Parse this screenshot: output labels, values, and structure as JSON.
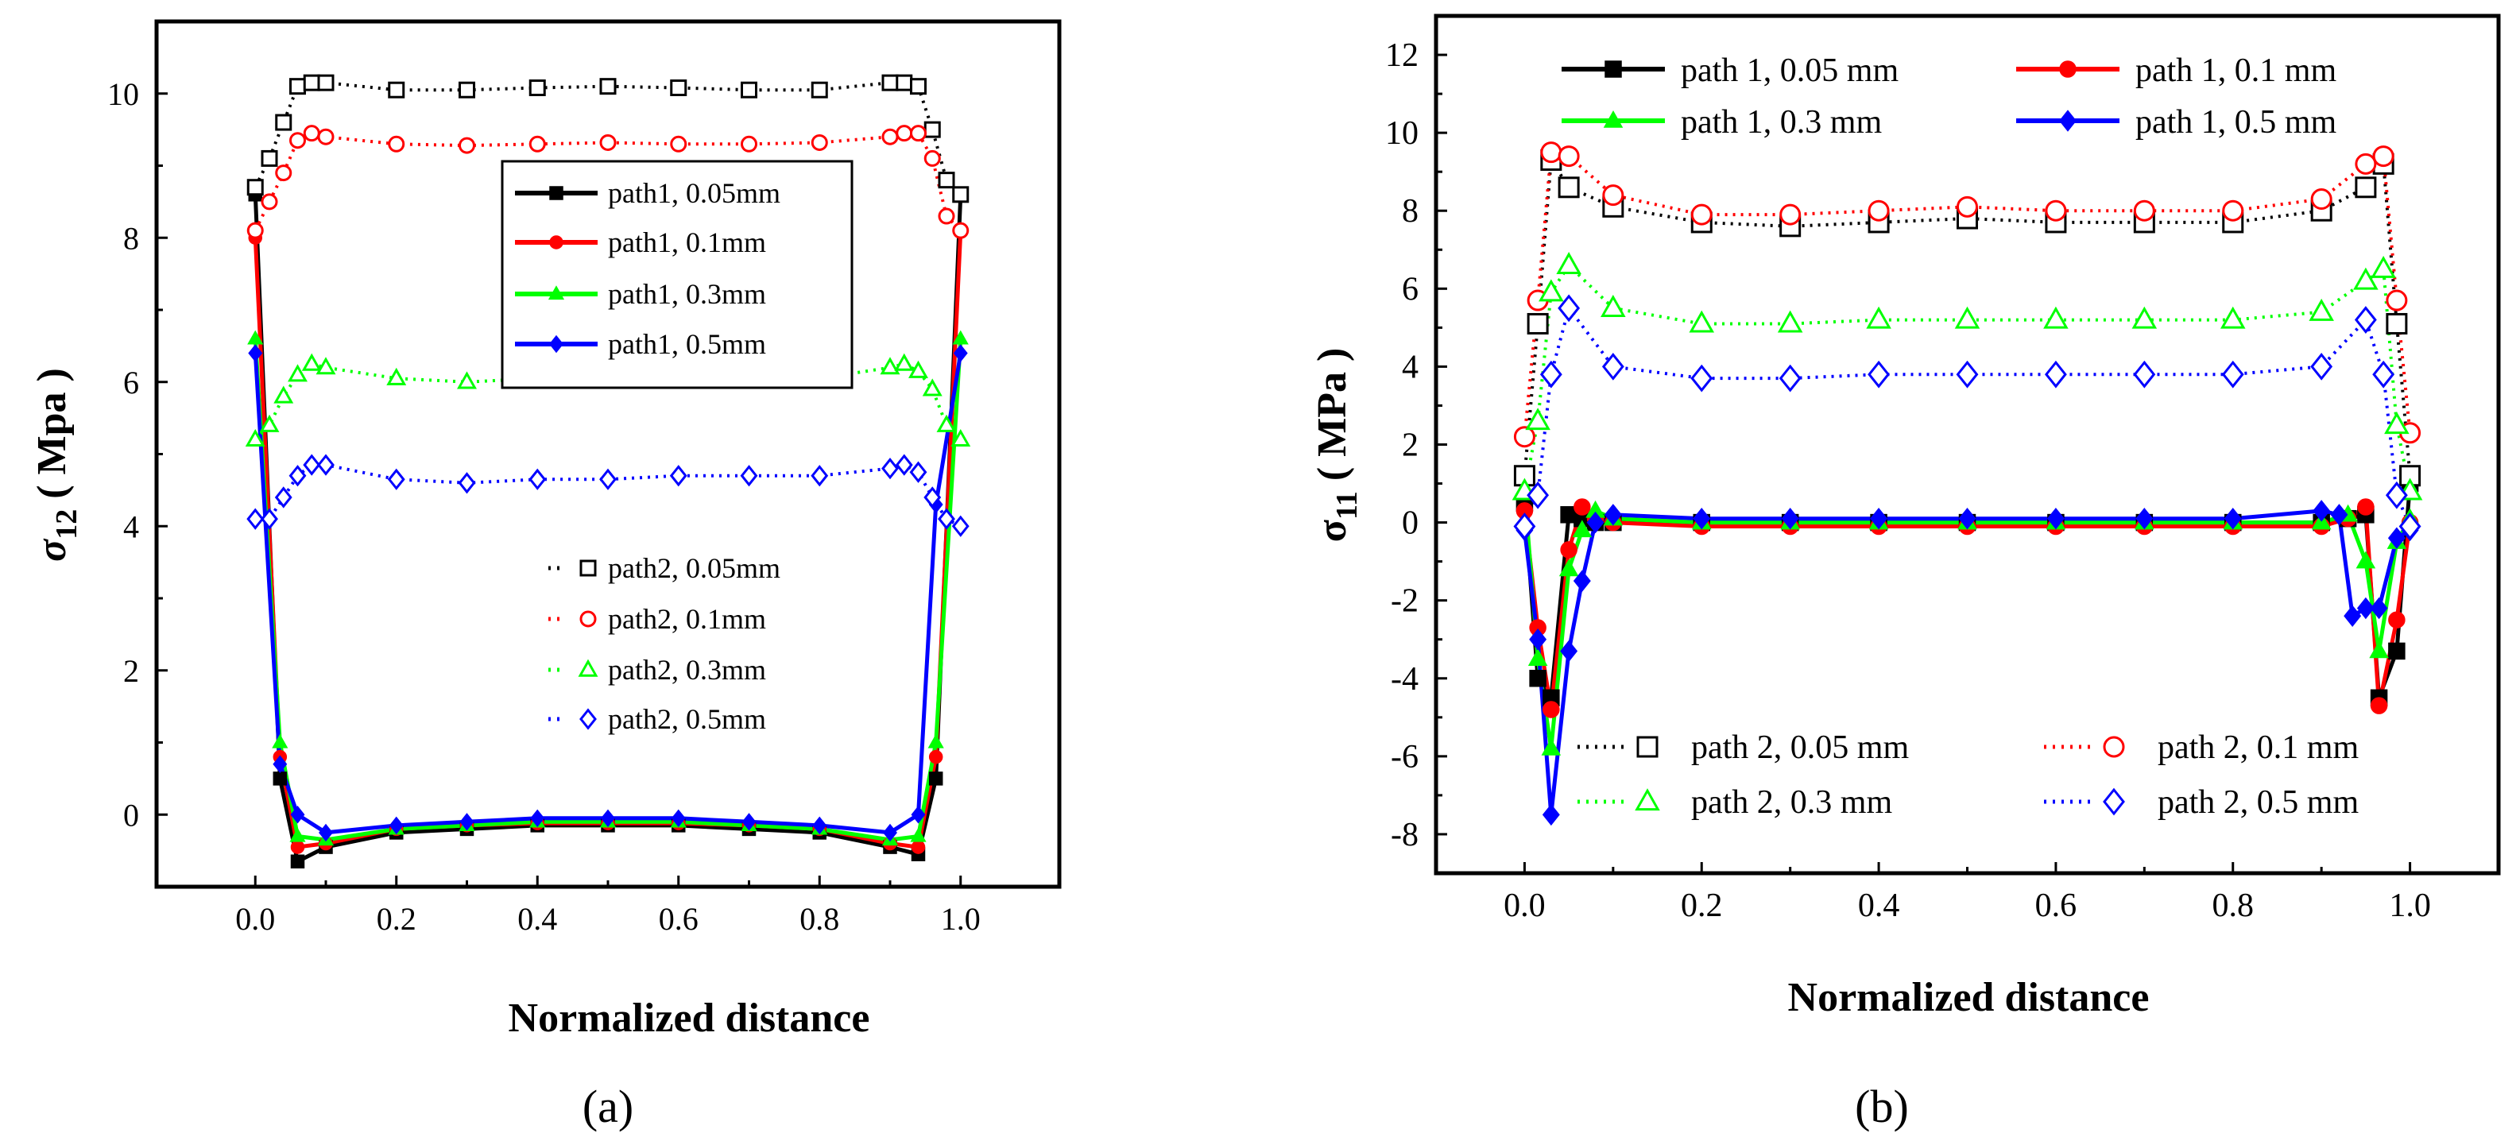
{
  "colors": {
    "black": "#000000",
    "red": "#ff0000",
    "green": "#00ff00",
    "blue": "#0000ff"
  },
  "chart_data": [
    {
      "type": "line",
      "panel_label": "(a)",
      "xlabel": "Normalized distance",
      "ylabel_sym": "σ",
      "ylabel_sub": "12",
      "ylabel_unit": "( Mpa )",
      "xlim": [
        -0.14,
        1.14
      ],
      "ylim": [
        -1.0,
        11.0
      ],
      "xticks": [
        0.0,
        0.2,
        0.4,
        0.6,
        0.8,
        1.0
      ],
      "xtick_labels": [
        "0.0",
        "0.2",
        "0.4",
        "0.6",
        "0.8",
        "1.0"
      ],
      "yticks": [
        0,
        2,
        4,
        6,
        8,
        10
      ],
      "ytick_labels": [
        "0",
        "2",
        "4",
        "6",
        "8",
        "10"
      ],
      "legends": [
        {
          "position": "upper-center",
          "items": [
            {
              "label": "path1, 0.05mm",
              "series": 0
            },
            {
              "label": "path1, 0.1mm",
              "series": 1
            },
            {
              "label": "path1, 0.3mm",
              "series": 2
            },
            {
              "label": "path1, 0.5mm",
              "series": 3
            }
          ]
        },
        {
          "position": "lower-center",
          "items": [
            {
              "label": "path2, 0.05mm",
              "series": 4
            },
            {
              "label": "path2, 0.1mm",
              "series": 5
            },
            {
              "label": "path2, 0.3mm",
              "series": 6
            },
            {
              "label": "path2, 0.5mm",
              "series": 7
            }
          ]
        }
      ],
      "series": [
        {
          "name": "path1, 0.05mm",
          "color": "#000000",
          "marker": "square",
          "filled": true,
          "line": "solid",
          "x": [
            0,
            0.035,
            0.06,
            0.1,
            0.2,
            0.3,
            0.4,
            0.5,
            0.6,
            0.7,
            0.8,
            0.9,
            0.94,
            0.965,
            1.0
          ],
          "y": [
            8.6,
            0.5,
            -0.65,
            -0.45,
            -0.25,
            -0.2,
            -0.15,
            -0.15,
            -0.15,
            -0.2,
            -0.25,
            -0.45,
            -0.55,
            0.5,
            8.6
          ]
        },
        {
          "name": "path1, 0.1mm",
          "color": "#ff0000",
          "marker": "circle",
          "filled": true,
          "line": "solid",
          "x": [
            0,
            0.035,
            0.06,
            0.1,
            0.2,
            0.3,
            0.4,
            0.5,
            0.6,
            0.7,
            0.8,
            0.9,
            0.94,
            0.965,
            1.0
          ],
          "y": [
            8.0,
            0.8,
            -0.45,
            -0.4,
            -0.2,
            -0.15,
            -0.12,
            -0.12,
            -0.12,
            -0.15,
            -0.2,
            -0.4,
            -0.45,
            0.8,
            8.1
          ]
        },
        {
          "name": "path1, 0.3mm",
          "color": "#00ff00",
          "marker": "triangle",
          "filled": true,
          "line": "solid",
          "x": [
            0,
            0.035,
            0.06,
            0.1,
            0.2,
            0.3,
            0.4,
            0.5,
            0.6,
            0.7,
            0.8,
            0.9,
            0.94,
            0.965,
            1.0
          ],
          "y": [
            6.6,
            1.0,
            -0.3,
            -0.35,
            -0.2,
            -0.15,
            -0.1,
            -0.1,
            -0.1,
            -0.15,
            -0.2,
            -0.35,
            -0.3,
            1.0,
            6.6
          ]
        },
        {
          "name": "path1, 0.5mm",
          "color": "#0000ff",
          "marker": "diamond",
          "filled": true,
          "line": "solid",
          "x": [
            0,
            0.035,
            0.06,
            0.1,
            0.2,
            0.3,
            0.4,
            0.5,
            0.6,
            0.7,
            0.8,
            0.9,
            0.94,
            0.965,
            1.0
          ],
          "y": [
            6.4,
            0.7,
            0.0,
            -0.25,
            -0.15,
            -0.1,
            -0.05,
            -0.05,
            -0.05,
            -0.1,
            -0.15,
            -0.25,
            0.0,
            4.3,
            6.4
          ]
        },
        {
          "name": "path2, 0.05mm",
          "color": "#000000",
          "marker": "square",
          "filled": false,
          "line": "dot",
          "x": [
            0,
            0.02,
            0.04,
            0.06,
            0.08,
            0.1,
            0.2,
            0.3,
            0.4,
            0.5,
            0.6,
            0.7,
            0.8,
            0.9,
            0.92,
            0.94,
            0.96,
            0.98,
            1.0
          ],
          "y": [
            8.7,
            9.1,
            9.6,
            10.1,
            10.15,
            10.15,
            10.05,
            10.05,
            10.08,
            10.1,
            10.08,
            10.05,
            10.05,
            10.15,
            10.15,
            10.1,
            9.5,
            8.8,
            8.6
          ]
        },
        {
          "name": "path2, 0.1mm",
          "color": "#ff0000",
          "marker": "circle",
          "filled": false,
          "line": "dot",
          "x": [
            0,
            0.02,
            0.04,
            0.06,
            0.08,
            0.1,
            0.2,
            0.3,
            0.4,
            0.5,
            0.6,
            0.7,
            0.8,
            0.9,
            0.92,
            0.94,
            0.96,
            0.98,
            1.0
          ],
          "y": [
            8.1,
            8.5,
            8.9,
            9.35,
            9.45,
            9.4,
            9.3,
            9.28,
            9.3,
            9.32,
            9.3,
            9.3,
            9.32,
            9.4,
            9.45,
            9.45,
            9.1,
            8.3,
            8.1
          ]
        },
        {
          "name": "path2, 0.3mm",
          "color": "#00ff00",
          "marker": "triangle",
          "filled": false,
          "line": "dot",
          "x": [
            0,
            0.02,
            0.04,
            0.06,
            0.08,
            0.1,
            0.2,
            0.3,
            0.4,
            0.5,
            0.6,
            0.7,
            0.8,
            0.9,
            0.92,
            0.94,
            0.96,
            0.98,
            1.0
          ],
          "y": [
            5.2,
            5.4,
            5.8,
            6.1,
            6.25,
            6.2,
            6.05,
            6.0,
            6.05,
            6.05,
            6.08,
            6.05,
            6.05,
            6.2,
            6.25,
            6.15,
            5.9,
            5.4,
            5.2
          ]
        },
        {
          "name": "path2, 0.5mm",
          "color": "#0000ff",
          "marker": "diamond",
          "filled": false,
          "line": "dot",
          "x": [
            0,
            0.02,
            0.04,
            0.06,
            0.08,
            0.1,
            0.2,
            0.3,
            0.4,
            0.5,
            0.6,
            0.7,
            0.8,
            0.9,
            0.92,
            0.94,
            0.96,
            0.98,
            1.0
          ],
          "y": [
            4.1,
            4.1,
            4.4,
            4.7,
            4.85,
            4.85,
            4.65,
            4.6,
            4.65,
            4.65,
            4.7,
            4.7,
            4.7,
            4.8,
            4.85,
            4.75,
            4.4,
            4.1,
            4.0
          ]
        }
      ]
    },
    {
      "type": "line",
      "panel_label": "(b)",
      "xlabel": "Normalized distance",
      "ylabel_sym": "σ",
      "ylabel_sub": "11",
      "ylabel_unit": "( MPa )",
      "xlim": [
        -0.1,
        1.1
      ],
      "ylim": [
        -9.0,
        13.0
      ],
      "xticks": [
        0.0,
        0.2,
        0.4,
        0.6,
        0.8,
        1.0
      ],
      "xtick_labels": [
        "0.0",
        "0.2",
        "0.4",
        "0.6",
        "0.8",
        "1.0"
      ],
      "yticks": [
        -8,
        -6,
        -4,
        -2,
        0,
        2,
        4,
        6,
        8,
        10,
        12
      ],
      "ytick_labels": [
        "-8",
        "-6",
        "-4",
        "-2",
        "0",
        "2",
        "4",
        "6",
        "8",
        "10",
        "12"
      ],
      "legends": [
        {
          "position": "top",
          "items": [
            {
              "label": "path 1, 0.05 mm",
              "series": 0
            },
            {
              "label": "path 1, 0.1 mm",
              "series": 1
            },
            {
              "label": "path 1, 0.3 mm",
              "series": 2
            },
            {
              "label": "path 1, 0.5 mm",
              "series": 3
            }
          ]
        },
        {
          "position": "bottom",
          "items": [
            {
              "label": "path 2, 0.05 mm",
              "series": 4
            },
            {
              "label": "path 2, 0.1 mm",
              "series": 5
            },
            {
              "label": "path 2, 0.3 mm",
              "series": 6
            },
            {
              "label": "path 2, 0.5 mm",
              "series": 7
            }
          ]
        }
      ],
      "series": [
        {
          "name": "path 1, 0.05 mm",
          "color": "#000000",
          "marker": "square",
          "filled": true,
          "line": "solid",
          "x": [
            0,
            0.015,
            0.03,
            0.05,
            0.065,
            0.08,
            0.1,
            0.2,
            0.3,
            0.4,
            0.5,
            0.6,
            0.7,
            0.8,
            0.9,
            0.93,
            0.95,
            0.965,
            0.985,
            1.0
          ],
          "y": [
            0.5,
            -4.0,
            -4.5,
            0.2,
            0.1,
            0.0,
            0.0,
            0.0,
            0.0,
            0.0,
            0.0,
            0.0,
            0.0,
            0.0,
            0.0,
            0.1,
            0.2,
            -4.5,
            -3.3,
            1.0
          ]
        },
        {
          "name": "path 1, 0.1 mm",
          "color": "#ff0000",
          "marker": "circle",
          "filled": true,
          "line": "solid",
          "x": [
            0,
            0.015,
            0.03,
            0.05,
            0.065,
            0.08,
            0.1,
            0.2,
            0.3,
            0.4,
            0.5,
            0.6,
            0.7,
            0.8,
            0.9,
            0.93,
            0.95,
            0.965,
            0.985,
            1.0
          ],
          "y": [
            0.3,
            -2.7,
            -4.8,
            -0.7,
            0.4,
            0.1,
            0.0,
            -0.1,
            -0.1,
            -0.1,
            -0.1,
            -0.1,
            -0.1,
            -0.1,
            -0.1,
            0.1,
            0.4,
            -4.7,
            -2.5,
            0.0
          ]
        },
        {
          "name": "path 1, 0.3 mm",
          "color": "#00ff00",
          "marker": "triangle",
          "filled": true,
          "line": "solid",
          "x": [
            0,
            0.015,
            0.03,
            0.05,
            0.065,
            0.08,
            0.1,
            0.2,
            0.3,
            0.4,
            0.5,
            0.6,
            0.7,
            0.8,
            0.9,
            0.93,
            0.95,
            0.965,
            0.985,
            1.0
          ],
          "y": [
            0.8,
            -3.5,
            -5.8,
            -1.2,
            -0.2,
            0.3,
            0.1,
            0.0,
            0.0,
            0.0,
            0.0,
            0.0,
            0.0,
            0.0,
            0.0,
            0.2,
            -1.0,
            -3.3,
            -0.5,
            0.1
          ]
        },
        {
          "name": "path 1, 0.5 mm",
          "color": "#0000ff",
          "marker": "diamond",
          "filled": true,
          "line": "solid",
          "x": [
            0,
            0.015,
            0.03,
            0.05,
            0.065,
            0.08,
            0.1,
            0.2,
            0.3,
            0.4,
            0.5,
            0.6,
            0.7,
            0.8,
            0.9,
            0.92,
            0.935,
            0.95,
            0.965,
            0.985,
            1.0
          ],
          "y": [
            -0.2,
            -3.0,
            -7.5,
            -3.3,
            -1.5,
            0.0,
            0.2,
            0.1,
            0.1,
            0.1,
            0.1,
            0.1,
            0.1,
            0.1,
            0.3,
            0.2,
            -2.4,
            -2.2,
            -2.2,
            -0.4,
            -0.2
          ]
        },
        {
          "name": "path 2, 0.05 mm",
          "color": "#000000",
          "marker": "square",
          "filled": false,
          "line": "dot",
          "x": [
            0,
            0.015,
            0.03,
            0.05,
            0.1,
            0.2,
            0.3,
            0.4,
            0.5,
            0.6,
            0.7,
            0.8,
            0.9,
            0.95,
            0.97,
            0.985,
            1.0
          ],
          "y": [
            1.2,
            5.1,
            9.3,
            8.6,
            8.1,
            7.7,
            7.6,
            7.7,
            7.8,
            7.7,
            7.7,
            7.7,
            8.0,
            8.6,
            9.2,
            5.1,
            1.2
          ]
        },
        {
          "name": "path 2, 0.1 mm",
          "color": "#ff0000",
          "marker": "circle",
          "filled": false,
          "line": "dot",
          "x": [
            0,
            0.015,
            0.03,
            0.05,
            0.1,
            0.2,
            0.3,
            0.4,
            0.5,
            0.6,
            0.7,
            0.8,
            0.9,
            0.95,
            0.97,
            0.985,
            1.0
          ],
          "y": [
            2.2,
            5.7,
            9.5,
            9.4,
            8.4,
            7.9,
            7.9,
            8.0,
            8.1,
            8.0,
            8.0,
            8.0,
            8.3,
            9.2,
            9.4,
            5.7,
            2.3
          ]
        },
        {
          "name": "path 2, 0.3 mm",
          "color": "#00ff00",
          "marker": "triangle",
          "filled": false,
          "line": "dot",
          "x": [
            0,
            0.015,
            0.03,
            0.05,
            0.1,
            0.2,
            0.3,
            0.4,
            0.5,
            0.6,
            0.7,
            0.8,
            0.9,
            0.95,
            0.97,
            0.985,
            1.0
          ],
          "y": [
            0.8,
            2.6,
            5.9,
            6.6,
            5.5,
            5.1,
            5.1,
            5.2,
            5.2,
            5.2,
            5.2,
            5.2,
            5.4,
            6.2,
            6.5,
            2.5,
            0.8
          ]
        },
        {
          "name": "path 2, 0.5 mm",
          "color": "#0000ff",
          "marker": "diamond",
          "filled": false,
          "line": "dot",
          "x": [
            0,
            0.015,
            0.03,
            0.05,
            0.1,
            0.2,
            0.3,
            0.4,
            0.5,
            0.6,
            0.7,
            0.8,
            0.9,
            0.95,
            0.97,
            0.985,
            1.0
          ],
          "y": [
            -0.1,
            0.7,
            3.8,
            5.5,
            4.0,
            3.7,
            3.7,
            3.8,
            3.8,
            3.8,
            3.8,
            3.8,
            4.0,
            5.2,
            3.8,
            0.7,
            -0.1
          ]
        }
      ]
    }
  ]
}
